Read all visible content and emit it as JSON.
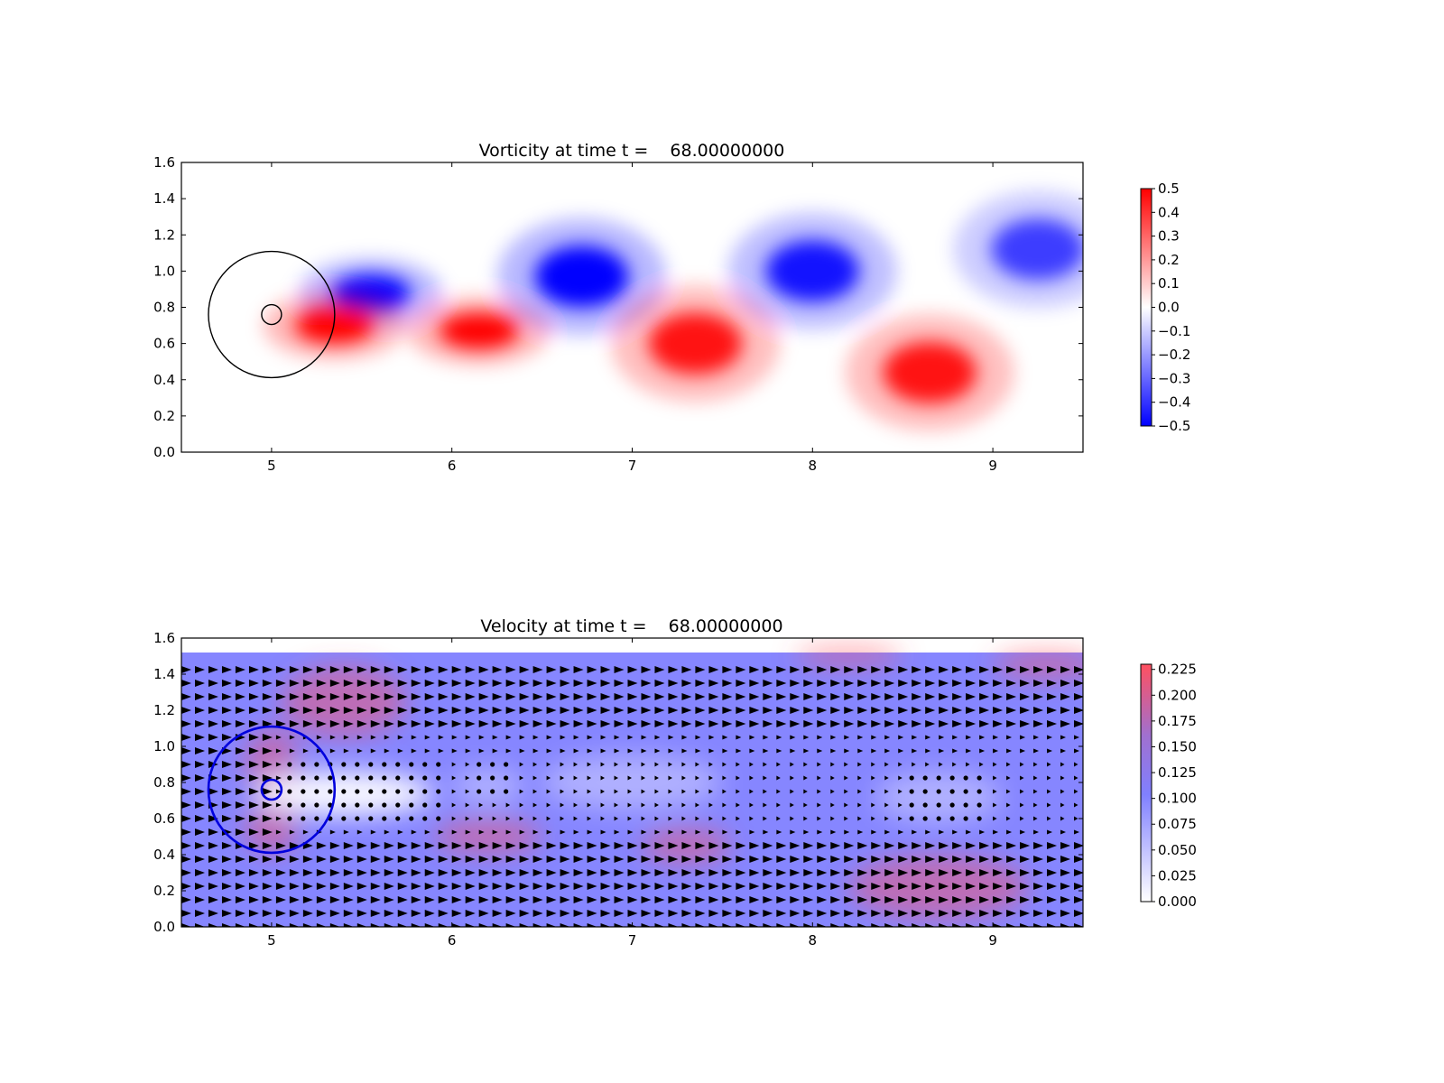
{
  "chart_data": [
    {
      "type": "heatmap",
      "title": "Vorticity at time t =    68.00000000",
      "xlabel": "",
      "ylabel": "",
      "xlim": [
        4.5,
        9.5
      ],
      "ylim": [
        0.0,
        1.6
      ],
      "xticks": [
        "5",
        "6",
        "7",
        "8",
        "9"
      ],
      "yticks": [
        "0.0",
        "0.2",
        "0.4",
        "0.6",
        "0.8",
        "1.0",
        "1.2",
        "1.4",
        "1.6"
      ],
      "grid": false,
      "colormap": {
        "min_color": "#0000ff",
        "mid_color": "#ffffff",
        "max_color": "#ff0000"
      },
      "colorbar": {
        "range": [
          -0.5,
          0.5
        ],
        "ticks": [
          "0.5",
          "0.4",
          "0.3",
          "0.2",
          "0.1",
          "0.0",
          "−0.1",
          "−0.2",
          "−0.3",
          "−0.4",
          "−0.5"
        ],
        "tick_values": [
          0.5,
          0.4,
          0.3,
          0.2,
          0.1,
          0.0,
          -0.1,
          -0.2,
          -0.3,
          -0.4,
          -0.5
        ]
      },
      "vortices": [
        {
          "x": 5.55,
          "y": 0.88,
          "value": -0.5
        },
        {
          "x": 5.35,
          "y": 0.7,
          "value": 0.5
        },
        {
          "x": 6.15,
          "y": 0.67,
          "value": 0.5
        },
        {
          "x": 6.72,
          "y": 0.97,
          "value": -0.5
        },
        {
          "x": 7.35,
          "y": 0.6,
          "value": 0.45
        },
        {
          "x": 8.0,
          "y": 1.0,
          "value": -0.45
        },
        {
          "x": 8.65,
          "y": 0.44,
          "value": 0.45
        },
        {
          "x": 9.25,
          "y": 1.12,
          "value": -0.35
        }
      ],
      "circles": [
        {
          "cx": 5.0,
          "cy": 0.76,
          "r": 0.35,
          "color": "#000000"
        },
        {
          "cx": 5.0,
          "cy": 0.76,
          "r": 0.055,
          "color": "#000000"
        }
      ]
    },
    {
      "type": "heatmap",
      "title": "Velocity at time t =    68.00000000",
      "xlabel": "",
      "ylabel": "",
      "xlim": [
        4.5,
        9.5
      ],
      "ylim": [
        0.0,
        1.6
      ],
      "xticks": [
        "5",
        "6",
        "7",
        "8",
        "9"
      ],
      "yticks": [
        "0.0",
        "0.2",
        "0.4",
        "0.6",
        "0.8",
        "1.0",
        "1.2",
        "1.4",
        "1.6"
      ],
      "grid": false,
      "field_extent_y": [
        0.0,
        1.52
      ],
      "colormap": {
        "min_color": "#ffffff",
        "mid_color": "#8080ff",
        "max_color": "#ff5060"
      },
      "colorbar": {
        "range": [
          0.0,
          0.23
        ],
        "ticks": [
          "0.225",
          "0.200",
          "0.175",
          "0.150",
          "0.125",
          "0.100",
          "0.075",
          "0.050",
          "0.025",
          "0.000"
        ],
        "tick_values": [
          0.225,
          0.2,
          0.175,
          0.15,
          0.125,
          0.1,
          0.075,
          0.05,
          0.025,
          0.0
        ]
      },
      "quiver": "arrows pointing in +x direction, shortened in wake",
      "wake_regions": [
        {
          "x": [
            5.05,
            5.95
          ],
          "y": [
            0.55,
            0.92
          ]
        },
        {
          "x": [
            6.1,
            6.35
          ],
          "y": [
            0.7,
            0.92
          ]
        },
        {
          "x": [
            8.5,
            8.95
          ],
          "y": [
            0.6,
            0.85
          ]
        }
      ],
      "circles": [
        {
          "cx": 5.0,
          "cy": 0.76,
          "r": 0.35,
          "color": "#0000dd"
        },
        {
          "cx": 5.0,
          "cy": 0.76,
          "r": 0.055,
          "color": "#0000dd"
        }
      ]
    }
  ]
}
